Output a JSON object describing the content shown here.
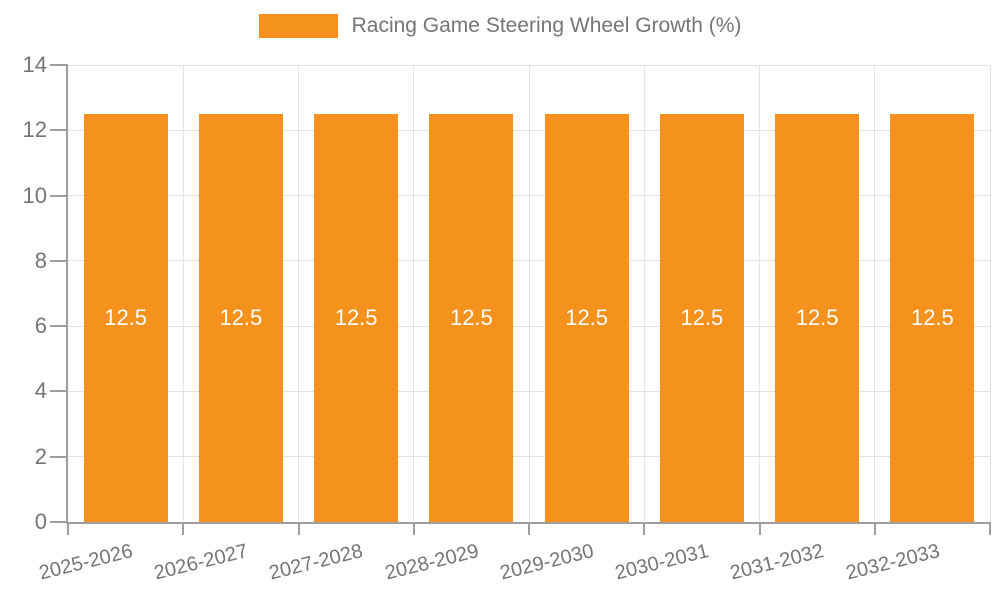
{
  "legend": {
    "label": "Racing Game Steering Wheel Growth (%)"
  },
  "chart_data": {
    "type": "bar",
    "title": "Racing Game Steering Wheel Growth (%)",
    "categories": [
      "2025-2026",
      "2026-2027",
      "2027-2028",
      "2028-2029",
      "2029-2030",
      "2030-2031",
      "2031-2032",
      "2032-2033"
    ],
    "series": [
      {
        "name": "Racing Game Steering Wheel Growth (%)",
        "values": [
          12.5,
          12.5,
          12.5,
          12.5,
          12.5,
          12.5,
          12.5,
          12.5
        ]
      }
    ],
    "value_labels": [
      "12.5",
      "12.5",
      "12.5",
      "12.5",
      "12.5",
      "12.5",
      "12.5",
      "12.5"
    ],
    "xlabel": "",
    "ylabel": "",
    "ylim": [
      0,
      14
    ],
    "ytick_labels": [
      "0",
      "2",
      "4",
      "6",
      "8",
      "10",
      "12",
      "14"
    ],
    "yticks": [
      0,
      2,
      4,
      6,
      8,
      10,
      12,
      14
    ],
    "grid": true,
    "legend_position": "top",
    "colors": {
      "bar": "#F5921E",
      "grid": "#e3e3e3",
      "axis": "#9e9e9e",
      "tick_text": "#757575",
      "legend_text": "#757575",
      "bar_label_text": "#ffffff",
      "background": "#ffffff"
    }
  }
}
